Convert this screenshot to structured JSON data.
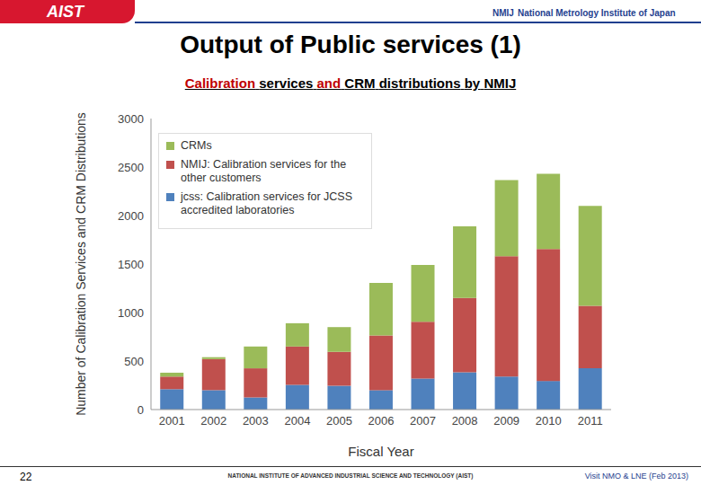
{
  "page": {
    "header": {
      "logo": "AIST",
      "institute_mark": "NMIJ",
      "institute": "National Metrology Institute of Japan"
    },
    "footer": {
      "page_number": "22",
      "organization": "NATIONAL INSTITUTE OF ADVANCED INDUSTRIAL SCIENCE AND TECHNOLOGY (AIST)",
      "event": "Visit NMO & LNE (Feb 2013)"
    }
  },
  "chart_data": {
    "type": "bar",
    "title": "Output of Public services (1)",
    "subtitle": "Calibration services and CRM distributions by NMIJ",
    "x_label": "Fiscal Year",
    "y_label": "Number of Calibration Services and CRM Distributions",
    "categories": [
      "2001",
      "2002",
      "2003",
      "2004",
      "2005",
      "2006",
      "2007",
      "2008",
      "2009",
      "2010",
      "2011"
    ],
    "series": [
      {
        "name": "jcss: Calibration services for JCSS accredited laboratories",
        "color": "#4f81bd",
        "values": [
          210,
          200,
          125,
          255,
          245,
          200,
          320,
          385,
          340,
          295,
          425
        ]
      },
      {
        "name": "NMIJ: Calibration services for the other customers",
        "color": "#c0504d",
        "values": [
          130,
          320,
          300,
          395,
          350,
          565,
          585,
          765,
          1240,
          1360,
          645
        ]
      },
      {
        "name": "CRMs",
        "color": "#9bbb59",
        "values": [
          40,
          20,
          225,
          240,
          255,
          540,
          585,
          740,
          785,
          775,
          1030
        ]
      }
    ],
    "ylim": [
      0,
      3000
    ],
    "yticks": [
      0,
      500,
      1000,
      1500,
      2000,
      2500,
      3000
    ],
    "stacked": true,
    "legend": "upper left",
    "grid": false
  }
}
